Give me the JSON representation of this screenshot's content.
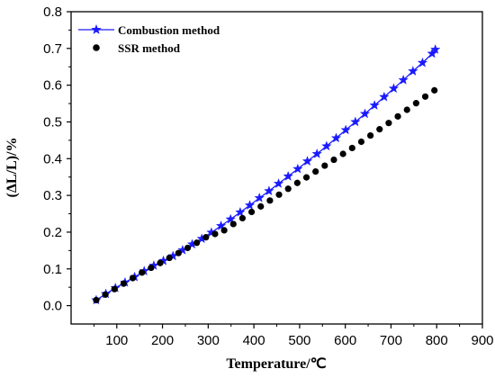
{
  "chart_data": {
    "type": "scatter",
    "xlabel": "Temperature/℃",
    "ylabel": "(ΔL/L)/%",
    "xlim": [
      0,
      900
    ],
    "ylim": [
      -0.05,
      0.8
    ],
    "xticks": [
      100,
      200,
      300,
      400,
      500,
      600,
      700,
      800,
      900
    ],
    "yticks": [
      0.0,
      0.1,
      0.2,
      0.3,
      0.4,
      0.5,
      0.6,
      0.7,
      0.8
    ],
    "xtick_labels": [
      "100",
      "200",
      "300",
      "400",
      "500",
      "600",
      "700",
      "800",
      "900"
    ],
    "ytick_labels": [
      "0.0",
      "0.1",
      "0.2",
      "0.3",
      "0.4",
      "0.5",
      "0.6",
      "0.7",
      "0.8"
    ],
    "legend_position": "top-left",
    "series": [
      {
        "name": "Combustion method",
        "color": "#1a1aff",
        "marker": "star",
        "line": true,
        "x": [
          55,
          76,
          97,
          118,
          139,
          160,
          181,
          202,
          223,
          244,
          265,
          286,
          307,
          328,
          349,
          370,
          391,
          412,
          433,
          454,
          475,
          496,
          517,
          538,
          559,
          580,
          601,
          622,
          643,
          664,
          685,
          706,
          727,
          748,
          769,
          790,
          797
        ],
        "y": [
          0.015,
          0.032,
          0.048,
          0.063,
          0.078,
          0.094,
          0.109,
          0.122,
          0.135,
          0.151,
          0.167,
          0.182,
          0.199,
          0.217,
          0.235,
          0.254,
          0.273,
          0.293,
          0.312,
          0.332,
          0.352,
          0.372,
          0.393,
          0.413,
          0.434,
          0.456,
          0.478,
          0.5,
          0.522,
          0.545,
          0.568,
          0.591,
          0.614,
          0.638,
          0.661,
          0.686,
          0.697
        ]
      },
      {
        "name": "SSR method",
        "color": "#000000",
        "marker": "circle",
        "line": false,
        "x": [
          55,
          75,
          95,
          115,
          135,
          155,
          175,
          195,
          215,
          235,
          255,
          275,
          295,
          315,
          335,
          355,
          375,
          395,
          415,
          435,
          455,
          475,
          495,
          515,
          535,
          555,
          575,
          595,
          615,
          635,
          655,
          675,
          695,
          715,
          735,
          755,
          775,
          795
        ],
        "y": [
          0.015,
          0.03,
          0.045,
          0.06,
          0.075,
          0.09,
          0.103,
          0.116,
          0.13,
          0.143,
          0.157,
          0.171,
          0.186,
          0.195,
          0.205,
          0.222,
          0.238,
          0.255,
          0.27,
          0.286,
          0.302,
          0.318,
          0.334,
          0.349,
          0.365,
          0.381,
          0.397,
          0.413,
          0.429,
          0.446,
          0.463,
          0.48,
          0.497,
          0.515,
          0.533,
          0.551,
          0.569,
          0.586
        ]
      }
    ]
  }
}
